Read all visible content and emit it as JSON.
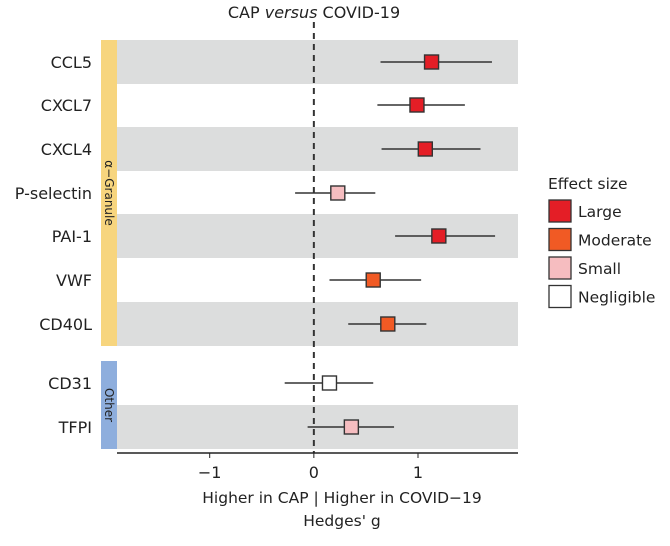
{
  "chart_data": {
    "type": "forest",
    "title_prefix": "CAP ",
    "title_italic": "versus",
    "title_suffix": " COVID-19",
    "xlabel_line1": "Higher in CAP | Higher in COVID−19",
    "xlabel_line2": "Hedges' g",
    "xlim": [
      -1.89,
      1.96
    ],
    "xticks": [
      {
        "value": -1,
        "label": "−1"
      },
      {
        "value": 0,
        "label": "0"
      },
      {
        "value": 1,
        "label": "1"
      }
    ],
    "reference_line": 0,
    "groups": [
      {
        "label": "α−Granule",
        "color": "#f7d57e",
        "rows": [
          0,
          6
        ]
      },
      {
        "label": "Other",
        "color": "#8eaedd",
        "rows": [
          7,
          8
        ]
      }
    ],
    "rows": [
      {
        "name": "CCL5",
        "g": 1.13,
        "lo": 0.64,
        "hi": 1.71,
        "effect": "Large"
      },
      {
        "name": "CXCL7",
        "g": 0.99,
        "lo": 0.61,
        "hi": 1.45,
        "effect": "Large"
      },
      {
        "name": "CXCL4",
        "g": 1.07,
        "lo": 0.65,
        "hi": 1.6,
        "effect": "Large"
      },
      {
        "name": "P-selectin",
        "g": 0.23,
        "lo": -0.18,
        "hi": 0.59,
        "effect": "Small"
      },
      {
        "name": "PAI-1",
        "g": 1.2,
        "lo": 0.78,
        "hi": 1.74,
        "effect": "Large"
      },
      {
        "name": "VWF",
        "g": 0.57,
        "lo": 0.15,
        "hi": 1.03,
        "effect": "Moderate"
      },
      {
        "name": "CD40L",
        "g": 0.71,
        "lo": 0.33,
        "hi": 1.08,
        "effect": "Moderate"
      },
      {
        "name": "CD31",
        "g": 0.15,
        "lo": -0.28,
        "hi": 0.57,
        "effect": "Negligible"
      },
      {
        "name": "TFPI",
        "g": 0.36,
        "lo": -0.06,
        "hi": 0.77,
        "effect": "Small"
      }
    ],
    "legend": {
      "title": "Effect size",
      "position": "right",
      "items": [
        {
          "label": "Large",
          "color": "#e41e26"
        },
        {
          "label": "Moderate",
          "color": "#f15a24"
        },
        {
          "label": "Small",
          "color": "#f6bdc0"
        },
        {
          "label": "Negligible",
          "color": "#ffffff"
        }
      ]
    },
    "stripe_color": "#dcdddd"
  }
}
